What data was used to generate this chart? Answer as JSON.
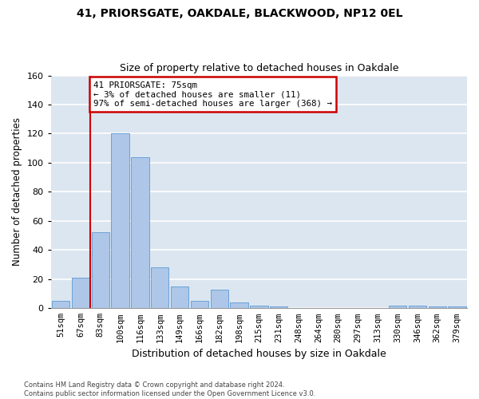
{
  "title1": "41, PRIORSGATE, OAKDALE, BLACKWOOD, NP12 0EL",
  "title2": "Size of property relative to detached houses in Oakdale",
  "xlabel": "Distribution of detached houses by size in Oakdale",
  "ylabel": "Number of detached properties",
  "categories": [
    "51sqm",
    "67sqm",
    "83sqm",
    "100sqm",
    "116sqm",
    "133sqm",
    "149sqm",
    "166sqm",
    "182sqm",
    "198sqm",
    "215sqm",
    "231sqm",
    "248sqm",
    "264sqm",
    "280sqm",
    "297sqm",
    "313sqm",
    "330sqm",
    "346sqm",
    "362sqm",
    "379sqm"
  ],
  "values": [
    5,
    21,
    52,
    120,
    104,
    28,
    15,
    5,
    13,
    4,
    2,
    1,
    0,
    0,
    0,
    0,
    0,
    2,
    2,
    1,
    1
  ],
  "bar_color": "#aec6e8",
  "bar_edge_color": "#5b9bd5",
  "background_color": "#dce6f0",
  "grid_color": "#ffffff",
  "ylim": [
    0,
    160
  ],
  "yticks": [
    0,
    20,
    40,
    60,
    80,
    100,
    120,
    140,
    160
  ],
  "red_line_x": 1.5,
  "annotation_text_line1": "41 PRIORSGATE: 75sqm",
  "annotation_text_line2": "← 3% of detached houses are smaller (11)",
  "annotation_text_line3": "97% of semi-detached houses are larger (368) →",
  "annotation_box_color": "#ffffff",
  "annotation_border_color": "#cc0000",
  "red_line_color": "#cc0000",
  "footer_line1": "Contains HM Land Registry data © Crown copyright and database right 2024.",
  "footer_line2": "Contains public sector information licensed under the Open Government Licence v3.0."
}
